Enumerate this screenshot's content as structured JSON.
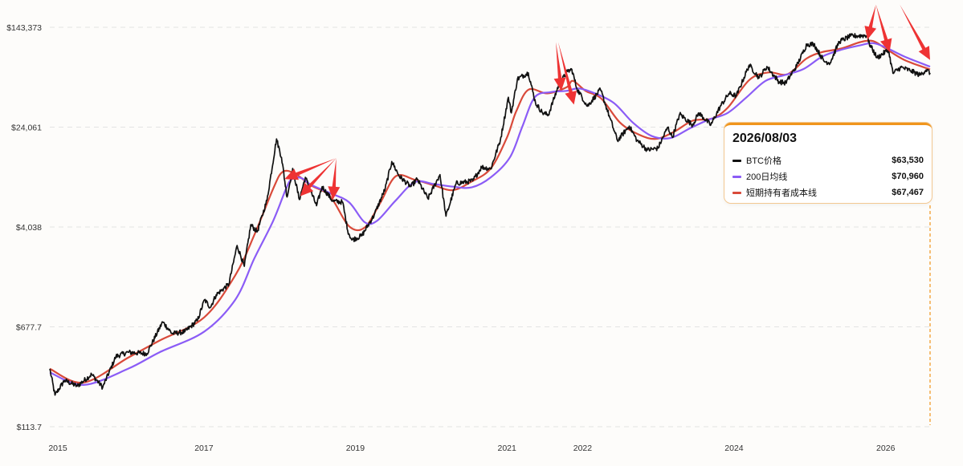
{
  "chart_data": {
    "type": "line",
    "scale": "log",
    "ylim": [
      113.7,
      143373
    ],
    "y_ticks": [
      "$143,373",
      "$24,061",
      "$4,038",
      "$677.7",
      "$113.7"
    ],
    "y_tick_values": [
      143373,
      24061,
      4038,
      677.7,
      113.7
    ],
    "x_ticks": [
      {
        "label": "2015",
        "date": "2015-01-01"
      },
      {
        "label": "2017",
        "date": "2017-01-01"
      },
      {
        "label": "2019",
        "date": "2019-01-01"
      },
      {
        "label": "2021",
        "date": "2021-01-01"
      },
      {
        "label": "2022",
        "date": "2022-01-01"
      },
      {
        "label": "2024",
        "date": "2024-01-01"
      },
      {
        "label": "2026",
        "date": "2026-01-01"
      }
    ],
    "xlim": [
      "2014-12-20",
      "2026-08-03"
    ],
    "grid": "horizontal dashed",
    "series": [
      {
        "name": "BTC价格",
        "color": "#111111",
        "points": [
          [
            "2014-12-20",
            320
          ],
          [
            "2015-01-14",
            200
          ],
          [
            "2015-03-01",
            260
          ],
          [
            "2015-05-01",
            235
          ],
          [
            "2015-07-10",
            290
          ],
          [
            "2015-09-01",
            230
          ],
          [
            "2015-11-04",
            400
          ],
          [
            "2016-01-01",
            430
          ],
          [
            "2016-04-01",
            420
          ],
          [
            "2016-06-16",
            740
          ],
          [
            "2016-08-01",
            600
          ],
          [
            "2016-10-01",
            620
          ],
          [
            "2016-12-01",
            760
          ],
          [
            "2017-01-04",
            1100
          ],
          [
            "2017-02-01",
            960
          ],
          [
            "2017-03-01",
            1200
          ],
          [
            "2017-05-01",
            1450
          ],
          [
            "2017-06-10",
            2900
          ],
          [
            "2017-07-15",
            2000
          ],
          [
            "2017-08-15",
            4200
          ],
          [
            "2017-09-15",
            3700
          ],
          [
            "2017-11-01",
            6500
          ],
          [
            "2017-12-17",
            19500
          ],
          [
            "2018-01-10",
            14000
          ],
          [
            "2018-02-06",
            6900
          ],
          [
            "2018-03-05",
            11500
          ],
          [
            "2018-04-06",
            6600
          ],
          [
            "2018-05-05",
            9800
          ],
          [
            "2018-06-28",
            5900
          ],
          [
            "2018-07-25",
            8300
          ],
          [
            "2018-09-15",
            6400
          ],
          [
            "2018-11-01",
            6300
          ],
          [
            "2018-11-25",
            3800
          ],
          [
            "2018-12-15",
            3200
          ],
          [
            "2019-02-01",
            3450
          ],
          [
            "2019-04-02",
            5000
          ],
          [
            "2019-05-25",
            8000
          ],
          [
            "2019-06-26",
            13000
          ],
          [
            "2019-08-01",
            10000
          ],
          [
            "2019-09-25",
            8300
          ],
          [
            "2019-10-26",
            9500
          ],
          [
            "2019-12-17",
            6700
          ],
          [
            "2020-02-13",
            10300
          ],
          [
            "2020-03-13",
            4900
          ],
          [
            "2020-05-01",
            8800
          ],
          [
            "2020-07-20",
            9200
          ],
          [
            "2020-09-01",
            11800
          ],
          [
            "2020-10-15",
            11400
          ],
          [
            "2020-11-30",
            19000
          ],
          [
            "2021-01-08",
            41000
          ],
          [
            "2021-01-22",
            31000
          ],
          [
            "2021-02-21",
            57000
          ],
          [
            "2021-04-14",
            63500
          ],
          [
            "2021-05-19",
            37000
          ],
          [
            "2021-06-22",
            31000
          ],
          [
            "2021-07-20",
            30000
          ],
          [
            "2021-09-07",
            51000
          ],
          [
            "2021-10-20",
            65000
          ],
          [
            "2021-11-10",
            67500
          ],
          [
            "2021-12-04",
            48000
          ],
          [
            "2022-01-24",
            35000
          ],
          [
            "2022-03-28",
            47000
          ],
          [
            "2022-05-12",
            28500
          ],
          [
            "2022-06-18",
            18900
          ],
          [
            "2022-08-14",
            24500
          ],
          [
            "2022-09-20",
            19000
          ],
          [
            "2022-11-09",
            16000
          ],
          [
            "2022-12-30",
            16500
          ],
          [
            "2023-02-15",
            24000
          ],
          [
            "2023-03-10",
            20000
          ],
          [
            "2023-04-14",
            30400
          ],
          [
            "2023-06-15",
            25000
          ],
          [
            "2023-07-15",
            31000
          ],
          [
            "2023-09-11",
            25000
          ],
          [
            "2023-10-25",
            34500
          ],
          [
            "2023-12-08",
            44000
          ],
          [
            "2024-01-12",
            42000
          ],
          [
            "2024-03-14",
            73000
          ],
          [
            "2024-05-01",
            58000
          ],
          [
            "2024-06-07",
            71000
          ],
          [
            "2024-08-05",
            54000
          ],
          [
            "2024-09-06",
            53000
          ],
          [
            "2024-10-29",
            72000
          ],
          [
            "2024-12-17",
            106000
          ],
          [
            "2025-01-20",
            106000
          ],
          [
            "2025-03-10",
            78000
          ],
          [
            "2025-04-08",
            76000
          ],
          [
            "2025-05-22",
            111000
          ],
          [
            "2025-07-14",
            122000
          ],
          [
            "2025-08-14",
            123000
          ],
          [
            "2025-10-06",
            124000
          ],
          [
            "2025-10-10",
            110000
          ],
          [
            "2025-11-21",
            83000
          ],
          [
            "2026-01-14",
            96000
          ],
          [
            "2026-02-05",
            63000
          ],
          [
            "2026-03-15",
            70000
          ],
          [
            "2026-05-01",
            66000
          ],
          [
            "2026-06-15",
            61000
          ],
          [
            "2026-07-15",
            67000
          ],
          [
            "2026-08-03",
            63530
          ]
        ]
      },
      {
        "name": "200日均线",
        "color": "#8b5cf6",
        "points": [
          [
            "2014-12-20",
            300
          ],
          [
            "2015-06-01",
            240
          ],
          [
            "2016-01-01",
            320
          ],
          [
            "2016-06-01",
            430
          ],
          [
            "2017-01-01",
            620
          ],
          [
            "2017-06-01",
            1100
          ],
          [
            "2017-09-01",
            2300
          ],
          [
            "2017-12-01",
            4500
          ],
          [
            "2018-02-01",
            8000
          ],
          [
            "2018-03-01",
            9500
          ],
          [
            "2018-04-15",
            9700
          ],
          [
            "2018-06-01",
            8600
          ],
          [
            "2018-09-01",
            7400
          ],
          [
            "2018-12-01",
            6300
          ],
          [
            "2019-02-15",
            4400
          ],
          [
            "2019-04-15",
            4500
          ],
          [
            "2019-07-15",
            6500
          ],
          [
            "2019-10-15",
            9000
          ],
          [
            "2020-01-15",
            8700
          ],
          [
            "2020-04-15",
            8300
          ],
          [
            "2020-07-15",
            8200
          ],
          [
            "2020-10-15",
            9800
          ],
          [
            "2021-01-15",
            14000
          ],
          [
            "2021-03-15",
            24000
          ],
          [
            "2021-05-15",
            41000
          ],
          [
            "2021-08-01",
            45000
          ],
          [
            "2021-10-15",
            46000
          ],
          [
            "2021-12-15",
            48000
          ],
          [
            "2022-03-01",
            44000
          ],
          [
            "2022-06-01",
            37000
          ],
          [
            "2022-09-01",
            26000
          ],
          [
            "2022-12-01",
            20500
          ],
          [
            "2023-03-01",
            19800
          ],
          [
            "2023-06-01",
            23500
          ],
          [
            "2023-09-01",
            27500
          ],
          [
            "2023-12-01",
            31000
          ],
          [
            "2024-03-01",
            41000
          ],
          [
            "2024-06-01",
            55000
          ],
          [
            "2024-09-01",
            61000
          ],
          [
            "2024-12-01",
            68000
          ],
          [
            "2025-03-01",
            85000
          ],
          [
            "2025-06-01",
            96000
          ],
          [
            "2025-09-01",
            104000
          ],
          [
            "2025-11-01",
            108000
          ],
          [
            "2026-01-01",
            100000
          ],
          [
            "2026-04-01",
            85000
          ],
          [
            "2026-08-03",
            70960
          ]
        ]
      },
      {
        "name": "短期持有者成本线",
        "color": "#d94a3a",
        "points": [
          [
            "2014-12-20",
            320
          ],
          [
            "2015-06-01",
            250
          ],
          [
            "2016-01-01",
            390
          ],
          [
            "2016-06-01",
            530
          ],
          [
            "2017-01-01",
            800
          ],
          [
            "2017-06-01",
            1700
          ],
          [
            "2017-09-01",
            3500
          ],
          [
            "2017-12-01",
            8000
          ],
          [
            "2018-01-15",
            10800
          ],
          [
            "2018-03-15",
            10500
          ],
          [
            "2018-06-01",
            8500
          ],
          [
            "2018-09-01",
            7000
          ],
          [
            "2018-12-01",
            4100
          ],
          [
            "2019-02-15",
            4000
          ],
          [
            "2019-05-01",
            6200
          ],
          [
            "2019-07-15",
            10000
          ],
          [
            "2019-10-15",
            9400
          ],
          [
            "2020-01-15",
            8500
          ],
          [
            "2020-04-15",
            7800
          ],
          [
            "2020-07-15",
            9100
          ],
          [
            "2020-10-15",
            11500
          ],
          [
            "2021-01-01",
            20000
          ],
          [
            "2021-02-15",
            32000
          ],
          [
            "2021-04-15",
            47000
          ],
          [
            "2021-07-15",
            44000
          ],
          [
            "2021-10-15",
            49000
          ],
          [
            "2021-11-15",
            55000
          ],
          [
            "2022-01-15",
            46000
          ],
          [
            "2022-04-01",
            40000
          ],
          [
            "2022-07-01",
            26000
          ],
          [
            "2022-10-01",
            21000
          ],
          [
            "2022-12-20",
            19500
          ],
          [
            "2023-03-15",
            22000
          ],
          [
            "2023-06-15",
            27000
          ],
          [
            "2023-09-15",
            28000
          ],
          [
            "2023-12-01",
            34000
          ],
          [
            "2024-03-15",
            56000
          ],
          [
            "2024-06-15",
            64000
          ],
          [
            "2024-09-15",
            62000
          ],
          [
            "2024-12-15",
            82000
          ],
          [
            "2025-03-01",
            92000
          ],
          [
            "2025-06-01",
            98000
          ],
          [
            "2025-09-01",
            110000
          ],
          [
            "2025-11-01",
            112000
          ],
          [
            "2026-01-01",
            98000
          ],
          [
            "2026-04-01",
            80000
          ],
          [
            "2026-08-03",
            67467
          ]
        ]
      }
    ]
  },
  "annotations": {
    "arrow_color": "#ee3333",
    "arrows": [
      {
        "date": "2018-01-25",
        "value": 9500
      },
      {
        "date": "2018-04-10",
        "value": 7000
      },
      {
        "date": "2018-09-15",
        "value": 6600
      },
      {
        "date": "2021-09-20",
        "value": 46000
      },
      {
        "date": "2021-11-20",
        "value": 36000
      },
      {
        "date": "2025-10-05",
        "value": 115000
      },
      {
        "date": "2026-01-20",
        "value": 92000
      },
      {
        "date": "2026-08-03",
        "value": 80000
      }
    ],
    "arrow_fans": [
      {
        "tail_date": "2018-10-01",
        "tail_value": 13800,
        "tips": [
          0,
          1,
          2
        ]
      },
      {
        "tail_date": "2021-08-25",
        "tail_value": 110000,
        "tips": [
          3
        ]
      },
      {
        "tail_date": "2021-09-05",
        "tail_value": 110000,
        "tips": [
          4
        ]
      },
      {
        "tail_date": "2025-11-15",
        "tail_value": 215000,
        "tips": [
          5,
          6
        ]
      },
      {
        "tail_date": "2026-03-10",
        "tail_value": 215000,
        "tips": [
          7
        ]
      }
    ]
  },
  "tooltip": {
    "date": "2026/08/03",
    "accent_color": "#f0951c",
    "rows": [
      {
        "label": "BTC价格",
        "value": "$63,530",
        "color": "#111111"
      },
      {
        "label": "200日均线",
        "value": "$70,960",
        "color": "#8b5cf6"
      },
      {
        "label": "短期持有者成本线",
        "value": "$67,467",
        "color": "#d94a3a"
      }
    ]
  }
}
